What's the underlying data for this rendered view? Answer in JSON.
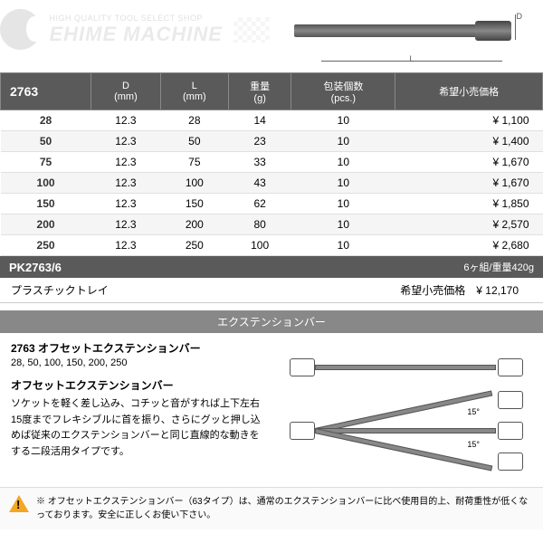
{
  "header": {
    "tagline": "HIGH QUALITY TOOL SELECT SHOP",
    "brand": "EHIME MACHINE",
    "dim_d": "D",
    "dim_l": "L"
  },
  "table": {
    "code": "2763",
    "cols": [
      "D\n(mm)",
      "L\n(mm)",
      "重量\n(g)",
      "包装個数\n(pcs.)",
      "希望小売価格"
    ],
    "rows": [
      [
        "28",
        "12.3",
        "28",
        "14",
        "10",
        "¥ 1,100"
      ],
      [
        "50",
        "12.3",
        "50",
        "23",
        "10",
        "¥ 1,400"
      ],
      [
        "75",
        "12.3",
        "75",
        "33",
        "10",
        "¥ 1,670"
      ],
      [
        "100",
        "12.3",
        "100",
        "43",
        "10",
        "¥ 1,670"
      ],
      [
        "150",
        "12.3",
        "150",
        "62",
        "10",
        "¥ 1,850"
      ],
      [
        "200",
        "12.3",
        "200",
        "80",
        "10",
        "¥ 2,570"
      ],
      [
        "250",
        "12.3",
        "250",
        "100",
        "10",
        "¥ 2,680"
      ]
    ]
  },
  "set": {
    "code": "PK2763/6",
    "spec": "6ヶ組/重量420g",
    "tray": "プラスチックトレイ",
    "price_label": "希望小売価格",
    "price": "¥ 12,170"
  },
  "ext": {
    "header": "エクステンションバー",
    "title": "2763 オフセットエクステンションバー",
    "sizes": "28, 50, 100, 150, 200, 250",
    "sub": "オフセットエクステンションバー",
    "text": "ソケットを軽く差し込み、コチッと音がすれば上下左右15度までフレキシブルに首を振り、さらにグッと押し込めば従来のエクステンションバーと同じ直線的な動きをする二段活用タイプです。",
    "angle": "15°"
  },
  "warning": "※ オフセットエクステンションバー（63タイプ）は、通常のエクステンションバーに比べ使用目的上、耐荷重性が低くなっております。安全に正しくお使い下さい。",
  "colors": {
    "header_bg": "#5a5a5a",
    "ext_bg": "#888888",
    "warn": "#f5a623"
  }
}
